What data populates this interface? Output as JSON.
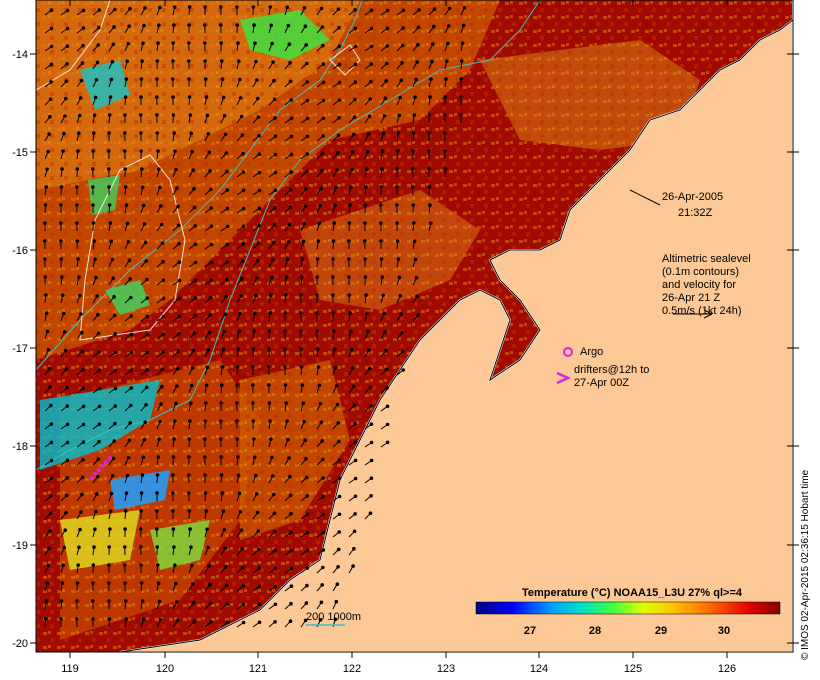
{
  "map": {
    "x_ticks": [
      "119",
      "120",
      "121",
      "122",
      "123",
      "124",
      "125",
      "126"
    ],
    "y_ticks": [
      "-14",
      "-15",
      "-16",
      "-17",
      "-18",
      "-19",
      "-20"
    ],
    "date_label": "26-Apr-2005",
    "time_label": "21:32Z",
    "altimetric_lines": [
      "Altimetric sealevel",
      "(0.1m contours)",
      "and velocity for",
      "26-Apr 21 Z",
      "0.5m/s (1kt 24h)"
    ],
    "argo_label": "Argo",
    "drifters_lines": [
      "drifters@12h to",
      "27-Apr 00Z"
    ],
    "bathy_label": "200  1000m",
    "colorbar_title": "Temperature (°C) NOAA15_L3U 27% ql>=4",
    "colorbar_ticks": [
      "27",
      "28",
      "29",
      "30"
    ],
    "credit": "© IMOS 02-Apr-2015 02:36:15 Hobart time",
    "colors": {
      "land": "#fcc896",
      "sst_warm": "#a00000",
      "sst_mid": "#d86000",
      "bathy_contour": "#40c0c0",
      "argo_marker": "#e020e0"
    }
  }
}
